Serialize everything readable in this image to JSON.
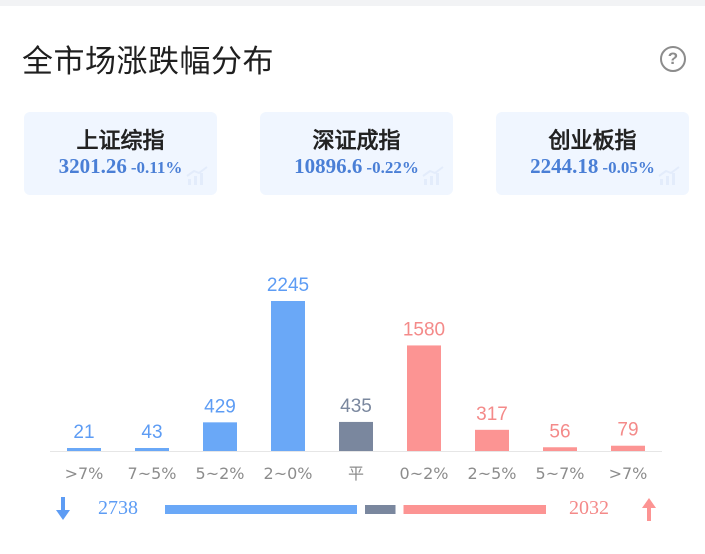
{
  "header": {
    "title": "全市场涨跌幅分布"
  },
  "indices": [
    {
      "name": "上证综指",
      "value": "3201.26",
      "change": "-0.11%"
    },
    {
      "name": "深证成指",
      "value": "10896.6",
      "change": "-0.22%"
    },
    {
      "name": "创业板指",
      "value": "2244.18",
      "change": "-0.05%"
    }
  ],
  "colors": {
    "down": "#6aa8f7",
    "flat": "#7a879e",
    "up": "#fc9493",
    "down_text": "#5d9cf4",
    "up_text": "#f48a89",
    "index_blue": "#4a7fd6"
  },
  "chart_data": {
    "type": "bar",
    "categories": [
      ">7%",
      "7~5%",
      "5~2%",
      "2~0%",
      "平",
      "0~2%",
      "2~5%",
      "5~7%",
      ">7%"
    ],
    "values": [
      21,
      43,
      429,
      2245,
      435,
      1580,
      317,
      56,
      79
    ],
    "groups": [
      "down",
      "down",
      "down",
      "down",
      "flat",
      "up",
      "up",
      "up",
      "up"
    ],
    "ylim": [
      0,
      2245
    ]
  },
  "summary": {
    "down_count": "2738",
    "up_count": "2032"
  }
}
